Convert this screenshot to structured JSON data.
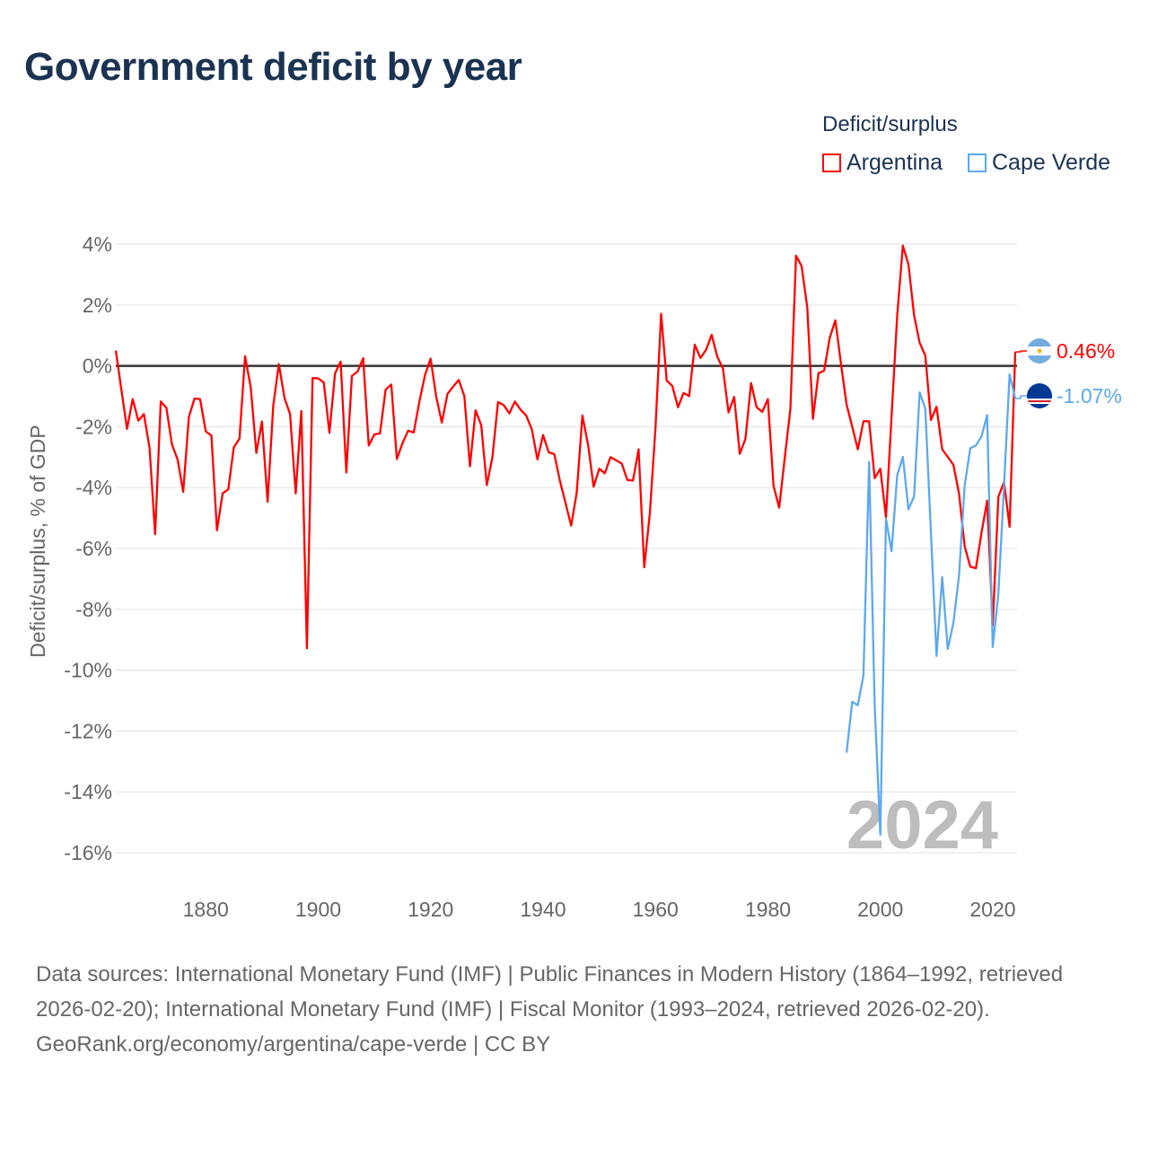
{
  "title": "Government deficit by year",
  "legend": {
    "title": "Deficit/surplus",
    "items": [
      {
        "label": "Argentina",
        "color": "#ff0000"
      },
      {
        "label": "Cape Verde",
        "color": "#5ea8ee"
      }
    ]
  },
  "watermark_year": "2024",
  "footer": {
    "sources": "Data sources: International Monetary Fund (IMF) | Public Finances in Modern History (1864–1992, retrieved 2026-02-20); International Monetary Fund (IMF) | Fiscal Monitor (1993–2024, retrieved 2026-02-20).",
    "credit": "GeoRank.org/economy/argentina/cape-verde | CC BY"
  },
  "chart_data": {
    "type": "line",
    "title": "Government deficit by year",
    "xlabel": "",
    "ylabel": "Deficit/surplus, % of GDP",
    "xlim": [
      1864,
      2024
    ],
    "ylim": [
      -16,
      4
    ],
    "xticks": [
      1880,
      1900,
      1920,
      1940,
      1960,
      1980,
      2000,
      2020
    ],
    "yticks": [
      4,
      2,
      0,
      -2,
      -4,
      -6,
      -8,
      -10,
      -12,
      -14,
      -16
    ],
    "ytick_labels": [
      "4%",
      "2%",
      "0%",
      "-2%",
      "-4%",
      "-6%",
      "-8%",
      "-10%",
      "-12%",
      "-14%",
      "-16%"
    ],
    "grid": true,
    "legend_position": "top-right",
    "end_labels": [
      "0.46%",
      "-1.07%"
    ],
    "series": [
      {
        "name": "Argentina",
        "color": "#ff0000",
        "start_year": 1864,
        "values": [
          0.5,
          -0.8,
          -2.07,
          -1.09,
          -1.8,
          -1.58,
          -2.7,
          -5.53,
          -1.17,
          -1.38,
          -2.59,
          -3.08,
          -4.14,
          -1.68,
          -1.07,
          -1.09,
          -2.15,
          -2.29,
          -5.4,
          -4.19,
          -4.06,
          -2.67,
          -2.39,
          0.32,
          -0.7,
          -2.86,
          -1.83,
          -4.47,
          -1.31,
          0.06,
          -1.05,
          -1.58,
          -4.19,
          -1.48,
          -9.28,
          -0.4,
          -0.41,
          -0.55,
          -2.2,
          -0.25,
          0.14,
          -3.5,
          -0.33,
          -0.19,
          0.25,
          -2.62,
          -2.25,
          -2.22,
          -0.78,
          -0.61,
          -3.06,
          -2.54,
          -2.13,
          -2.19,
          -1.17,
          -0.31,
          0.24,
          -1.02,
          -1.86,
          -0.92,
          -0.68,
          -0.46,
          -0.99,
          -3.3,
          -1.46,
          -1.95,
          -3.92,
          -2.99,
          -1.19,
          -1.29,
          -1.56,
          -1.17,
          -1.44,
          -1.63,
          -2.08,
          -3.07,
          -2.27,
          -2.84,
          -2.9,
          -3.77,
          -4.51,
          -5.25,
          -4.16,
          -1.63,
          -2.59,
          -3.97,
          -3.38,
          -3.53,
          -3.0,
          -3.1,
          -3.21,
          -3.75,
          -3.77,
          -2.74,
          -6.62,
          -4.85,
          -2.05,
          1.71,
          -0.48,
          -0.66,
          -1.36,
          -0.89,
          -0.99,
          0.7,
          0.26,
          0.53,
          1.02,
          0.3,
          -0.09,
          -1.53,
          -1.02,
          -2.89,
          -2.4,
          -0.56,
          -1.36,
          -1.51,
          -1.09,
          -3.94,
          -4.66,
          -3.03,
          -1.41,
          3.62,
          3.28,
          1.92,
          -1.74,
          -0.24,
          -0.16,
          0.92,
          1.5,
          0.06,
          -1.27,
          -2.0,
          -2.74,
          -1.82,
          -1.82,
          -3.69,
          -3.38,
          -4.97,
          -1.66,
          1.66,
          3.95,
          3.34,
          1.66,
          0.76,
          0.34,
          -1.78,
          -1.34,
          -2.74,
          -2.99,
          -3.25,
          -4.2,
          -5.92,
          -6.6,
          -6.65,
          -5.48,
          -4.43,
          -8.54,
          -4.3,
          -3.82,
          -5.29,
          0.46
        ]
      },
      {
        "name": "Cape Verde",
        "color": "#5ea8ee",
        "start_year": 1994,
        "values": [
          -12.71,
          -11.04,
          -11.15,
          -10.17,
          -3.16,
          -11.15,
          -15.41,
          -5.03,
          -6.09,
          -3.59,
          -2.99,
          -4.71,
          -4.29,
          -0.87,
          -1.4,
          -5.5,
          -9.53,
          -6.94,
          -9.3,
          -8.45,
          -6.88,
          -3.95,
          -2.71,
          -2.61,
          -2.32,
          -1.62,
          -9.24,
          -7.49,
          -3.95,
          -0.28,
          -1.07
        ]
      }
    ]
  }
}
